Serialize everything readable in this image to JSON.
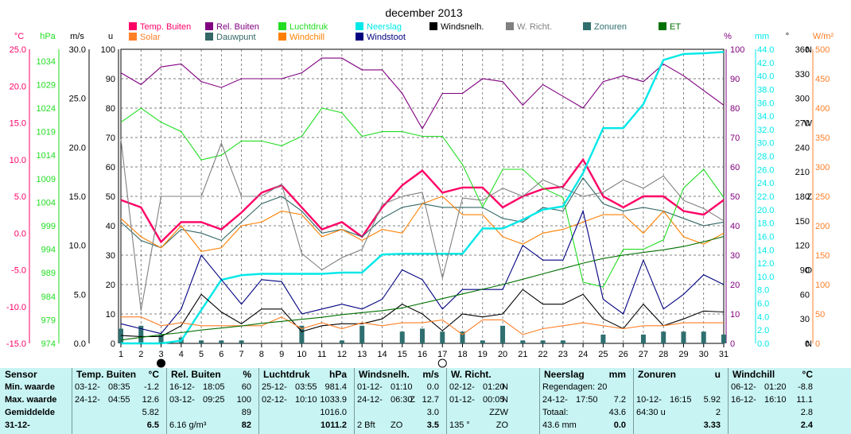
{
  "title": "december 2013",
  "colors": {
    "temp": "#ff0066",
    "solar": "#ff7f27",
    "rel": "#800080",
    "dew": "#336666",
    "press": "#22dd22",
    "windchill": "#ff8000",
    "neerslag": "#00e8e8",
    "windstoot": "#000080",
    "windsnelh": "#000000",
    "wrichting": "#808080",
    "zonuren": "#2f6f6f",
    "et": "#007000",
    "grid": "#555555",
    "table_bg": "#c8f4f4"
  },
  "chart_data": {
    "type": "line",
    "title": "december 2013",
    "x": [
      1,
      2,
      3,
      4,
      5,
      6,
      7,
      8,
      9,
      10,
      11,
      12,
      13,
      14,
      15,
      16,
      17,
      18,
      19,
      20,
      21,
      22,
      23,
      24,
      25,
      26,
      27,
      28,
      29,
      30,
      31
    ],
    "xlim": [
      1,
      31
    ],
    "axes": {
      "celsius": {
        "unit": "°C",
        "ticks": [
          "25.0",
          "20.0",
          "15.0",
          "10.0",
          "5.0",
          "0.0",
          "-5.0",
          "-10.0",
          "-15.0"
        ],
        "range": [
          -15,
          25
        ]
      },
      "hpa": {
        "unit": "hPa",
        "ticks": [
          "1034",
          "1029",
          "1024",
          "1019",
          "1014",
          "1009",
          "1004",
          "999",
          "994",
          "989",
          "984",
          "979",
          "974"
        ],
        "range": [
          974,
          1036.5
        ]
      },
      "ms": {
        "unit": "m/s",
        "ticks": [
          "30.0",
          "25.0",
          "20.0",
          "15.0",
          "10.0",
          "5.0",
          "0.0"
        ],
        "range": [
          0,
          30
        ]
      },
      "u": {
        "unit": "u",
        "ticks": [
          "100",
          "90",
          "80",
          "70",
          "60",
          "50",
          "40",
          "30",
          "20",
          "10",
          "0"
        ],
        "range": [
          0,
          100
        ]
      },
      "pct": {
        "unit": "%",
        "ticks": [
          "100",
          "90",
          "80",
          "70",
          "60",
          "50",
          "40",
          "30",
          "20",
          "10",
          "0"
        ],
        "range": [
          0,
          100
        ]
      },
      "mm": {
        "unit": "mm",
        "ticks": [
          "44.0",
          "42.0",
          "40.0",
          "38.0",
          "36.0",
          "34.0",
          "32.0",
          "30.0",
          "28.0",
          "26.0",
          "24.0",
          "22.0",
          "20.0",
          "18.0",
          "16.0",
          "14.0",
          "12.0",
          "10.0",
          "8.0",
          "6.0",
          "4.0",
          "2.0",
          "0.0"
        ],
        "range": [
          0,
          44
        ]
      },
      "deg": {
        "unit": "°",
        "ticks": [
          "360",
          "330",
          "300",
          "270",
          "240",
          "210",
          "180",
          "150",
          "120",
          "90",
          "60",
          "30",
          "0"
        ],
        "range": [
          0,
          360
        ]
      },
      "dirs": {
        "labels": [
          "N",
          "W",
          "Z",
          "O",
          "N"
        ],
        "values": [
          360,
          270,
          180,
          90,
          0
        ]
      },
      "wm2": {
        "unit": "W/m²",
        "ticks": [
          "500",
          "450",
          "400",
          "350",
          "300",
          "250",
          "200",
          "150",
          "100",
          "50",
          "0"
        ],
        "range": [
          0,
          500
        ]
      }
    },
    "legend": [
      {
        "name": "Temp. Buiten",
        "key": "temp"
      },
      {
        "name": "Solar",
        "key": "solar"
      },
      {
        "name": "Rel. Buiten",
        "key": "rel"
      },
      {
        "name": "Dauwpunt",
        "key": "dew"
      },
      {
        "name": "Luchtdruk",
        "key": "press"
      },
      {
        "name": "Windchill",
        "key": "windchill"
      },
      {
        "name": "Neerslag",
        "key": "neerslag"
      },
      {
        "name": "Windstoot",
        "key": "windstoot"
      },
      {
        "name": "Windsnelh.",
        "key": "windsnelh"
      },
      {
        "name": "W. Richt.",
        "key": "wrichting"
      },
      {
        "name": "Zonuren",
        "key": "zonuren"
      },
      {
        "name": "ET",
        "key": "et"
      }
    ],
    "series": [
      {
        "key": "temp",
        "axis": "celsius",
        "values": [
          4.5,
          3.5,
          -1.2,
          1.5,
          1.5,
          0.5,
          2.8,
          5.5,
          6.5,
          3.5,
          0.5,
          1.5,
          -0.5,
          3.5,
          6.5,
          8.5,
          5.5,
          6.2,
          6.2,
          3.5,
          5.0,
          6.0,
          6.3,
          10.0,
          5.0,
          3.5,
          5.0,
          5.0,
          3.0,
          2.5,
          4.5
        ]
      },
      {
        "key": "rel",
        "axis": "pct",
        "values": [
          92,
          88,
          94,
          95,
          89,
          87,
          90,
          90,
          90,
          92,
          97,
          97,
          93,
          93,
          85,
          73,
          85,
          85,
          90,
          89,
          81,
          88,
          84,
          80,
          89,
          91,
          89,
          95,
          91,
          86,
          81
        ]
      },
      {
        "key": "dew",
        "axis": "celsius",
        "values": [
          1.5,
          -1.0,
          -2.0,
          0.5,
          0.0,
          -1.0,
          1.5,
          4.0,
          5.0,
          3.0,
          0.0,
          0.5,
          -0.5,
          2.0,
          3.5,
          4.0,
          3.5,
          3.5,
          3.5,
          2.0,
          1.5,
          3.5,
          3.0,
          7.5,
          4.0,
          3.0,
          3.5,
          3.0,
          2.0,
          1.0,
          1.5
        ]
      },
      {
        "key": "windchill",
        "axis": "celsius",
        "values": [
          2.0,
          -0.5,
          -2.0,
          1.0,
          -2.5,
          -2.0,
          1.0,
          1.5,
          3.0,
          2.5,
          -0.5,
          0.5,
          -1.0,
          0.5,
          0.0,
          4.0,
          5.0,
          2.5,
          2.5,
          -0.5,
          -1.5,
          0.0,
          0.5,
          1.5,
          2.5,
          2.5,
          0.0,
          3.0,
          -0.5,
          -1.5,
          0.0
        ]
      },
      {
        "key": "press",
        "axis": "hpa",
        "values": [
          1021,
          1024,
          1021,
          1019,
          1013,
          1014,
          1017,
          1017,
          1016,
          1018,
          1024,
          1023,
          1018,
          1019,
          1019,
          1018,
          1018,
          1012,
          1003,
          1011,
          1011,
          1007,
          1005,
          987,
          986,
          994,
          994,
          996,
          1007,
          1011,
          1005
        ]
      },
      {
        "key": "neerslag",
        "axis": "mm",
        "values": [
          0.0,
          0.0,
          0.0,
          0.4,
          5.0,
          9.5,
          10.2,
          10.4,
          10.4,
          10.4,
          10.4,
          10.6,
          10.6,
          13.3,
          13.4,
          13.4,
          13.4,
          13.4,
          17.2,
          17.2,
          18.5,
          20.0,
          20.5,
          25.5,
          32.2,
          32.2,
          35.8,
          42.4,
          43.3,
          43.4,
          43.6
        ]
      },
      {
        "key": "windstoot",
        "axis": "ms",
        "values": [
          2.0,
          1.5,
          1.0,
          3.5,
          9.0,
          6.5,
          4.0,
          6.5,
          6.3,
          3.0,
          3.5,
          4.0,
          3.5,
          4.5,
          7.5,
          6.5,
          3.5,
          5.5,
          5.5,
          5.5,
          10.0,
          8.5,
          8.5,
          13.5,
          4.5,
          3.0,
          8.5,
          3.5,
          5.0,
          7.0,
          6.0
        ]
      },
      {
        "key": "windsnelh",
        "axis": "ms",
        "values": [
          0.8,
          0.7,
          0.7,
          1.8,
          5.0,
          3.2,
          2.0,
          3.5,
          3.5,
          1.2,
          1.8,
          2.0,
          2.0,
          2.5,
          4.0,
          3.0,
          1.3,
          3.0,
          2.7,
          3.0,
          5.5,
          4.0,
          4.0,
          5.0,
          2.5,
          1.5,
          4.0,
          1.8,
          2.5,
          3.3,
          3.2
        ]
      },
      {
        "key": "wrichting",
        "axis": "deg",
        "values": [
          250,
          40,
          180,
          180,
          180,
          245,
          180,
          180,
          195,
          110,
          90,
          105,
          115,
          170,
          180,
          185,
          80,
          178,
          175,
          190,
          180,
          200,
          190,
          180,
          185,
          200,
          190,
          205,
          175,
          165,
          150
        ]
      },
      {
        "key": "solar",
        "axis": "wm2",
        "values": [
          45,
          45,
          30,
          35,
          30,
          30,
          30,
          30,
          45,
          25,
          35,
          25,
          35,
          30,
          35,
          35,
          40,
          15,
          40,
          40,
          15,
          25,
          30,
          35,
          30,
          25,
          30,
          30,
          35,
          35,
          35
        ]
      },
      {
        "key": "et",
        "axis": "mm",
        "values": [
          0.5,
          0.9,
          1.3,
          1.6,
          2.0,
          2.3,
          2.6,
          3.0,
          3.3,
          3.6,
          3.9,
          4.3,
          4.6,
          4.9,
          5.3,
          6.0,
          6.7,
          7.4,
          8.1,
          8.8,
          9.6,
          10.4,
          11.2,
          12.0,
          12.7,
          13.2,
          13.6,
          14.0,
          14.5,
          15.2,
          16.0
        ]
      },
      {
        "key": "zonuren",
        "axis": "u",
        "type": "bar",
        "values": [
          5,
          6,
          3,
          2,
          1,
          1,
          1,
          0,
          0,
          6,
          0,
          1,
          6,
          0,
          4,
          5,
          4,
          4,
          1,
          6,
          1,
          1,
          1,
          0,
          3,
          0,
          3,
          4,
          4,
          4,
          3
        ]
      }
    ],
    "moon_phases": [
      {
        "day": 3,
        "phase": "new"
      },
      {
        "day": 17,
        "phase": "full"
      }
    ]
  },
  "table": {
    "row_labels": [
      "Sensor",
      "Min. waarde",
      "Max. waarde",
      "Gemiddelde",
      "31-12-"
    ],
    "columns": [
      {
        "name": "Temp. Buiten",
        "unit": "°C",
        "rows": [
          [
            "03-12-",
            "08:35",
            "",
            "-1.2"
          ],
          [
            "24-12-",
            "04:55",
            "",
            "12.6"
          ],
          [
            "",
            "",
            "",
            "5.82"
          ],
          [
            "",
            "",
            "",
            "6.5"
          ]
        ]
      },
      {
        "name": "Rel. Buiten",
        "unit": "%",
        "rows": [
          [
            "16-12-",
            "18:05",
            "",
            "60"
          ],
          [
            "03-12-",
            "09:25",
            "",
            "100"
          ],
          [
            "",
            "",
            "",
            "89"
          ],
          [
            "6.16 g/m³",
            "",
            "",
            "82"
          ]
        ]
      },
      {
        "name": "Luchtdruk",
        "unit": "hPa",
        "rows": [
          [
            "25-12-",
            "03:55",
            "",
            "981.4"
          ],
          [
            "02-12-",
            "10:10",
            "",
            "1033.9"
          ],
          [
            "",
            "",
            "",
            "1016.0"
          ],
          [
            "",
            "",
            "",
            "1011.2"
          ]
        ]
      },
      {
        "name": "Windsnelh.",
        "unit": "m/s",
        "rows": [
          [
            "01-12-",
            "01:10",
            "",
            "0.0"
          ],
          [
            "24-12-",
            "06:30",
            "Z",
            "12.7"
          ],
          [
            "",
            "",
            "",
            "3.0"
          ],
          [
            "2 Bft",
            "ZO",
            "",
            "3.5"
          ]
        ]
      },
      {
        "name": "W. Richt.",
        "unit": "",
        "rows": [
          [
            "02-12-",
            "01:20",
            "N",
            ""
          ],
          [
            "01-12-",
            "00:05",
            "N",
            ""
          ],
          [
            "",
            "",
            "ZZW",
            ""
          ],
          [
            "135 °",
            "",
            "ZO",
            ""
          ]
        ]
      },
      {
        "name": "Neerslag",
        "unit": "mm",
        "rows": [
          [
            "Regendagen: 20",
            "",
            "",
            ""
          ],
          [
            "24-12-",
            "17:50",
            "",
            "7.2"
          ],
          [
            "Totaal:",
            "",
            "",
            "43.6"
          ],
          [
            "43.6 mm",
            "",
            "",
            "0.0"
          ]
        ]
      },
      {
        "name": "Zonuren",
        "unit": "u",
        "rows": [
          [
            "",
            "",
            "",
            ""
          ],
          [
            "10-12-",
            "16:15",
            "",
            "5.92"
          ],
          [
            "64:30 u",
            "",
            "",
            "2"
          ],
          [
            "",
            "",
            "",
            "3.33"
          ]
        ]
      },
      {
        "name": "Windchill",
        "unit": "°C",
        "rows": [
          [
            "06-12-",
            "01:20",
            "",
            "-8.8"
          ],
          [
            "16-12-",
            "16:10",
            "",
            "11.1"
          ],
          [
            "",
            "",
            "",
            "2.8"
          ],
          [
            "",
            "",
            "",
            "2.4"
          ]
        ]
      }
    ]
  }
}
